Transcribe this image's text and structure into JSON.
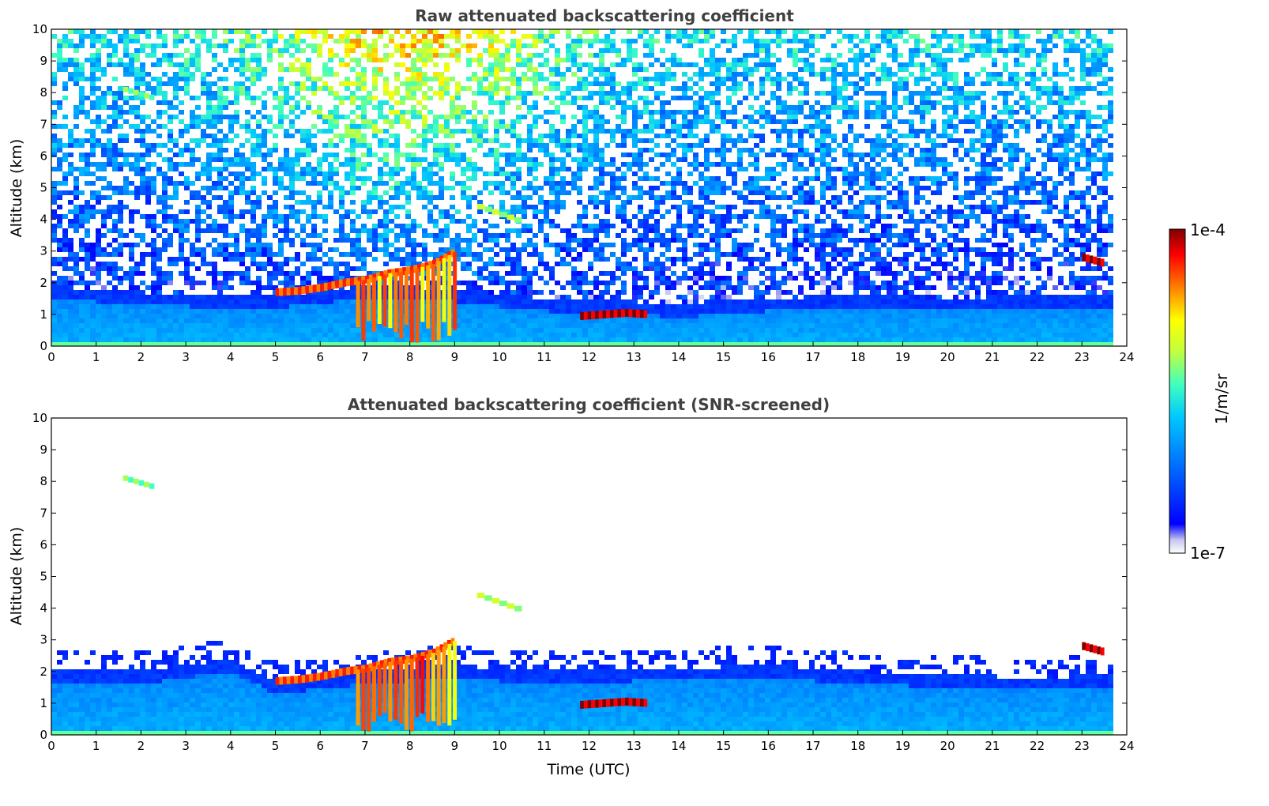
{
  "chart_data": [
    {
      "type": "heatmap",
      "title": "Raw attenuated backscattering coefficient",
      "xlabel": "",
      "ylabel": "Altitude (km)",
      "xlim": [
        0,
        24
      ],
      "ylim": [
        0,
        10
      ],
      "x_ticks": [
        "0",
        "1",
        "2",
        "3",
        "4",
        "5",
        "6",
        "7",
        "8",
        "9",
        "10",
        "11",
        "12",
        "13",
        "14",
        "15",
        "16",
        "17",
        "18",
        "19",
        "20",
        "21",
        "22",
        "23",
        "24"
      ],
      "y_ticks": [
        "0",
        "1",
        "2",
        "3",
        "4",
        "5",
        "6",
        "7",
        "8",
        "9",
        "10"
      ],
      "data_end_time": 23.7,
      "noise_field": true,
      "layers": [
        {
          "name": "boundary-layer",
          "x": [
            0,
            2,
            4,
            5,
            7,
            9,
            11,
            13,
            14,
            16,
            18,
            20,
            22,
            23.7
          ],
          "top": [
            1.9,
            1.7,
            1.6,
            1.6,
            1.9,
            1.8,
            1.5,
            1.4,
            1.3,
            1.5,
            1.6,
            1.5,
            1.6,
            1.6
          ],
          "level": 0.28
        },
        {
          "name": "elevated-aerosol-layer",
          "x": [
            5.0,
            5.5,
            6.0,
            6.5,
            7.0,
            7.5,
            8.0,
            8.5,
            9.0
          ],
          "top": [
            1.7,
            1.75,
            1.85,
            2.0,
            2.1,
            2.3,
            2.4,
            2.6,
            3.0
          ],
          "level": 0.9
        },
        {
          "name": "cloud-base-12-13",
          "x": [
            11.8,
            12.3,
            12.8,
            13.3
          ],
          "top": [
            0.95,
            1.0,
            1.05,
            1.0
          ],
          "level": 1.0
        },
        {
          "name": "cloud-23-7",
          "x": [
            23.0,
            23.5
          ],
          "top": [
            2.8,
            2.6
          ],
          "level": 1.0
        },
        {
          "name": "thin-plume-4-km",
          "x": [
            9.5,
            10.5
          ],
          "top": [
            4.4,
            3.9
          ],
          "level": 0.65
        },
        {
          "name": "thin-plume-8-km",
          "x": [
            1.6,
            2.3
          ],
          "top": [
            8.1,
            7.8
          ],
          "level": 0.6
        }
      ]
    },
    {
      "type": "heatmap",
      "title": "Attenuated backscattering coefficient (SNR-screened)",
      "xlabel": "Time (UTC)",
      "ylabel": "Altitude (km)",
      "xlim": [
        0,
        24
      ],
      "ylim": [
        0,
        10
      ],
      "x_ticks": [
        "0",
        "1",
        "2",
        "3",
        "4",
        "5",
        "6",
        "7",
        "8",
        "9",
        "10",
        "11",
        "12",
        "13",
        "14",
        "15",
        "16",
        "17",
        "18",
        "19",
        "20",
        "21",
        "22",
        "23",
        "24"
      ],
      "y_ticks": [
        "0",
        "1",
        "2",
        "3",
        "4",
        "5",
        "6",
        "7",
        "8",
        "9",
        "10"
      ],
      "data_end_time": 23.7,
      "noise_field": false,
      "layers": [
        {
          "name": "boundary-layer",
          "x": [
            0,
            2,
            4,
            5,
            7,
            9,
            11,
            13,
            14,
            16,
            18,
            20,
            22,
            23.7
          ],
          "top": [
            2.0,
            2.0,
            2.4,
            1.7,
            2.0,
            2.2,
            2.0,
            2.1,
            2.1,
            2.2,
            2.0,
            1.9,
            1.8,
            1.9
          ],
          "level": 0.28
        },
        {
          "name": "elevated-aerosol-layer",
          "x": [
            5.0,
            5.5,
            6.0,
            6.5,
            7.0,
            7.5,
            8.0,
            8.5,
            9.0
          ],
          "top": [
            1.7,
            1.75,
            1.85,
            2.0,
            2.1,
            2.3,
            2.4,
            2.6,
            3.0
          ],
          "level": 0.9
        },
        {
          "name": "cloud-base-12-13",
          "x": [
            11.8,
            12.3,
            12.8,
            13.3
          ],
          "top": [
            0.95,
            1.0,
            1.05,
            1.0
          ],
          "level": 1.0
        },
        {
          "name": "cloud-23-3",
          "x": [
            23.0,
            23.5
          ],
          "top": [
            2.8,
            2.6
          ],
          "level": 1.0
        },
        {
          "name": "thin-plume-4-km",
          "x": [
            9.5,
            10.5
          ],
          "top": [
            4.4,
            3.9
          ],
          "level": 0.65
        },
        {
          "name": "thin-plume-8-km",
          "x": [
            1.6,
            2.3
          ],
          "top": [
            8.1,
            7.8
          ],
          "level": 0.6
        }
      ]
    }
  ],
  "colorbar": {
    "label": "1/m/sr",
    "max_label": "1e-4",
    "min_label": "1e-7",
    "scale": "log",
    "range": [
      1e-07,
      0.0001
    ],
    "colormap": "jet"
  }
}
